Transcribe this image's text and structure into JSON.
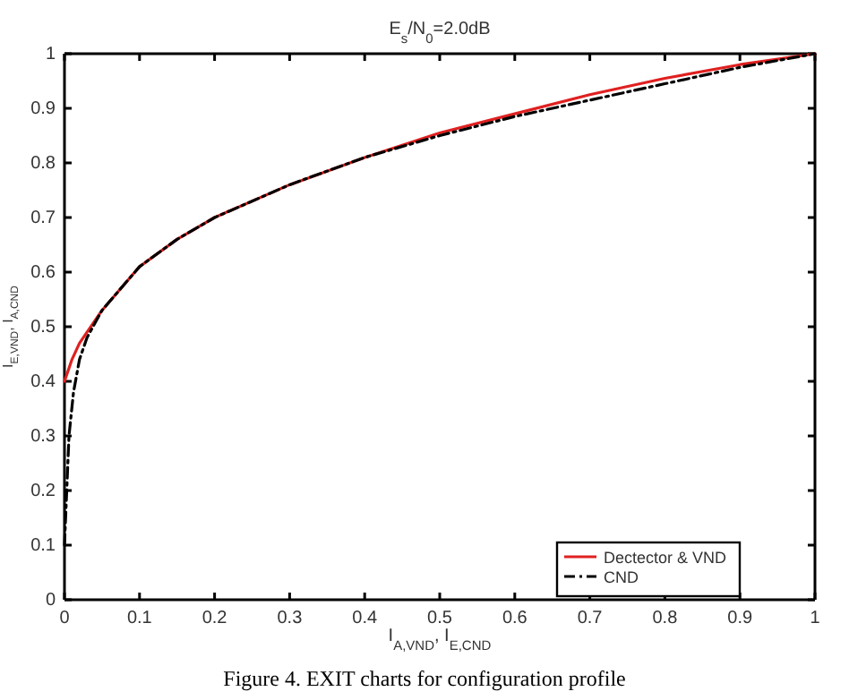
{
  "chart_data": {
    "type": "line",
    "title": "E$_{s}$/N$_{0}$=2.0dB",
    "xlabel": "I$_{A,VND}$, I$_{E,CND}$",
    "ylabel": "I$_{E,VND}$, I$_{A,CND}$",
    "annotations": [
      "Figure 4. EXIT charts for configuration profile"
    ],
    "xlim": [
      0,
      1
    ],
    "ylim": [
      0,
      1
    ],
    "xticks": [
      0,
      0.1,
      0.2,
      0.3,
      0.4,
      0.5,
      0.6,
      0.7,
      0.8,
      0.9,
      1
    ],
    "yticks": [
      0,
      0.1,
      0.2,
      0.3,
      0.4,
      0.5,
      0.6,
      0.7,
      0.8,
      0.9,
      1
    ],
    "grid": false,
    "legend": "bottom right",
    "marker": "none",
    "series": [
      {
        "name": "Dectector & VND",
        "color": "#e02020",
        "line_style": "solid",
        "x": [
          0,
          0.01,
          0.02,
          0.05,
          0.1,
          0.15,
          0.2,
          0.3,
          0.4,
          0.5,
          0.6,
          0.7,
          0.8,
          0.9,
          1
        ],
        "values": [
          0.4,
          0.44,
          0.47,
          0.53,
          0.61,
          0.66,
          0.7,
          0.76,
          0.81,
          0.855,
          0.89,
          0.925,
          0.955,
          0.98,
          1
        ]
      },
      {
        "name": "CND",
        "color": "#000000",
        "line_style": "dashdot",
        "x": [
          0,
          0.003,
          0.006,
          0.012,
          0.02,
          0.03,
          0.05,
          0.1,
          0.15,
          0.2,
          0.3,
          0.4,
          0.5,
          0.6,
          0.7,
          0.8,
          0.9,
          1
        ],
        "values": [
          0.1,
          0.2,
          0.3,
          0.38,
          0.44,
          0.48,
          0.53,
          0.61,
          0.66,
          0.7,
          0.76,
          0.81,
          0.85,
          0.885,
          0.915,
          0.945,
          0.975,
          1
        ]
      }
    ]
  }
}
